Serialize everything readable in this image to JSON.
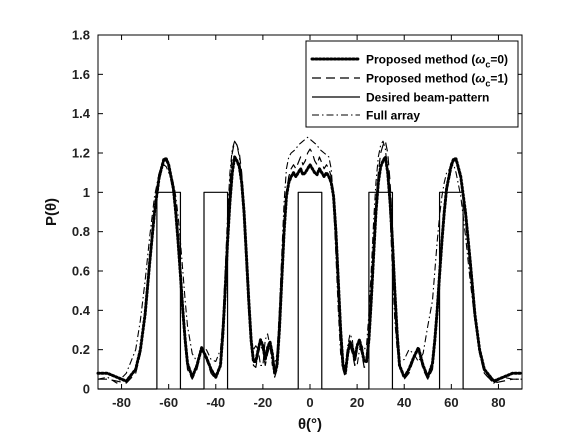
{
  "chart_data": {
    "type": "line",
    "xlabel": "θ(°)",
    "ylabel": "P(θ)",
    "xlim": [
      -90,
      90
    ],
    "ylim": [
      0,
      1.8
    ],
    "xticks": [
      -80,
      -60,
      -40,
      -20,
      0,
      20,
      40,
      60,
      80
    ],
    "yticks": [
      0,
      0.2,
      0.4,
      0.6,
      0.8,
      1,
      1.2,
      1.4,
      1.6,
      1.8
    ],
    "ytick_labels": [
      "0",
      "0.2",
      "0.4",
      "0.6",
      "0.8",
      "1",
      "1.2",
      "1.4",
      "1.6",
      "1.8"
    ],
    "grid": false,
    "legend_position": "top-right",
    "series": [
      {
        "name": "Proposed method (ωc=0)",
        "legend_main": "Proposed method (",
        "legend_symbol": "ω",
        "legend_sub": "c",
        "legend_tail": "=0)",
        "style": "dotted",
        "x": [
          -90,
          -86,
          -82,
          -78,
          -74,
          -72,
          -70,
          -68,
          -66,
          -64,
          -62,
          -61,
          -60,
          -58,
          -57,
          -56,
          -55,
          -54,
          -53,
          -52,
          -50,
          -48,
          -46,
          -44,
          -42,
          -40,
          -38,
          -37,
          -36,
          -35,
          -34,
          -33,
          -32,
          -31,
          -30,
          -29,
          -28,
          -27,
          -26,
          -25,
          -24,
          -23,
          -22,
          -21,
          -20,
          -19,
          -18,
          -17,
          -16,
          -15,
          -14,
          -13,
          -12,
          -11,
          -10,
          -9,
          -8,
          -7,
          -6,
          -5,
          -4,
          -3,
          -2,
          -1,
          0,
          1,
          2,
          3,
          4,
          5,
          6,
          7,
          8,
          9,
          10,
          11,
          12,
          13,
          14,
          15,
          16,
          17,
          18,
          19,
          20,
          21,
          22,
          23,
          24,
          25,
          26,
          27,
          28,
          29,
          30,
          31,
          32,
          33,
          34,
          35,
          36,
          37,
          38,
          40,
          42,
          44,
          46,
          48,
          50,
          52,
          53,
          54,
          55,
          56,
          57,
          58,
          60,
          61,
          62,
          64,
          66,
          68,
          70,
          72,
          74,
          78,
          82,
          86,
          90
        ],
        "y": [
          0.08,
          0.08,
          0.06,
          0.04,
          0.1,
          0.2,
          0.38,
          0.65,
          0.9,
          1.08,
          1.17,
          1.17,
          1.14,
          1.02,
          0.9,
          0.75,
          0.58,
          0.4,
          0.25,
          0.13,
          0.06,
          0.12,
          0.21,
          0.16,
          0.1,
          0.06,
          0.12,
          0.28,
          0.5,
          0.75,
          0.95,
          1.1,
          1.18,
          1.16,
          1.13,
          1.05,
          0.9,
          0.68,
          0.45,
          0.25,
          0.14,
          0.14,
          0.2,
          0.25,
          0.22,
          0.15,
          0.21,
          0.24,
          0.18,
          0.08,
          0.12,
          0.3,
          0.55,
          0.8,
          0.98,
          1.05,
          1.08,
          1.1,
          1.08,
          1.1,
          1.12,
          1.09,
          1.1,
          1.12,
          1.14,
          1.12,
          1.1,
          1.09,
          1.12,
          1.1,
          1.08,
          1.1,
          1.08,
          1.05,
          0.98,
          0.8,
          0.55,
          0.3,
          0.12,
          0.08,
          0.18,
          0.24,
          0.21,
          0.15,
          0.22,
          0.25,
          0.2,
          0.14,
          0.14,
          0.25,
          0.45,
          0.68,
          0.9,
          1.05,
          1.13,
          1.16,
          1.18,
          1.1,
          0.95,
          0.75,
          0.5,
          0.28,
          0.12,
          0.06,
          0.1,
          0.16,
          0.21,
          0.12,
          0.06,
          0.13,
          0.25,
          0.4,
          0.58,
          0.75,
          0.9,
          1.02,
          1.14,
          1.17,
          1.17,
          1.08,
          0.9,
          0.65,
          0.38,
          0.2,
          0.1,
          0.04,
          0.06,
          0.08,
          0.08
        ]
      },
      {
        "name": "Proposed method (ωc=1)",
        "legend_main": "Proposed method (",
        "legend_symbol": "ω",
        "legend_sub": "c",
        "legend_tail": "=1)",
        "style": "dashed",
        "x": [
          -90,
          -86,
          -82,
          -78,
          -74,
          -72,
          -70,
          -68,
          -66,
          -64,
          -62,
          -61,
          -60,
          -58,
          -57,
          -56,
          -55,
          -54,
          -53,
          -52,
          -50,
          -48,
          -46,
          -44,
          -42,
          -40,
          -38,
          -37,
          -36,
          -35,
          -34,
          -33,
          -32,
          -31,
          -30,
          -29,
          -28,
          -27,
          -26,
          -25,
          -24,
          -23,
          -22,
          -21,
          -20,
          -19,
          -18,
          -17,
          -16,
          -15,
          -14,
          -13,
          -12,
          -11,
          -10,
          -9,
          -8,
          -7,
          -6,
          -5,
          -4,
          -3,
          -2,
          -1,
          0,
          1,
          2,
          3,
          4,
          5,
          6,
          7,
          8,
          9,
          10,
          11,
          12,
          13,
          14,
          15,
          16,
          17,
          18,
          19,
          20,
          21,
          22,
          23,
          24,
          25,
          26,
          27,
          28,
          29,
          30,
          31,
          32,
          33,
          34,
          35,
          36,
          37,
          38,
          40,
          42,
          44,
          46,
          48,
          50,
          52,
          53,
          54,
          55,
          56,
          57,
          58,
          60,
          61,
          62,
          64,
          66,
          68,
          70,
          72,
          74,
          78,
          82,
          86,
          90
        ],
        "y": [
          0.05,
          0.05,
          0.04,
          0.03,
          0.08,
          0.18,
          0.36,
          0.62,
          0.88,
          1.06,
          1.16,
          1.16,
          1.12,
          1.0,
          0.88,
          0.72,
          0.55,
          0.38,
          0.22,
          0.1,
          0.05,
          0.1,
          0.2,
          0.15,
          0.08,
          0.05,
          0.12,
          0.3,
          0.55,
          0.82,
          1.05,
          1.2,
          1.26,
          1.24,
          1.2,
          1.1,
          0.92,
          0.7,
          0.46,
          0.25,
          0.12,
          0.11,
          0.18,
          0.22,
          0.2,
          0.12,
          0.18,
          0.22,
          0.16,
          0.06,
          0.1,
          0.28,
          0.55,
          0.82,
          1.0,
          1.08,
          1.12,
          1.14,
          1.12,
          1.15,
          1.18,
          1.14,
          1.16,
          1.2,
          1.22,
          1.2,
          1.16,
          1.14,
          1.18,
          1.15,
          1.12,
          1.14,
          1.12,
          1.08,
          1.0,
          0.82,
          0.55,
          0.28,
          0.1,
          0.06,
          0.16,
          0.22,
          0.18,
          0.12,
          0.2,
          0.22,
          0.18,
          0.11,
          0.12,
          0.25,
          0.46,
          0.7,
          0.92,
          1.1,
          1.2,
          1.24,
          1.26,
          1.2,
          1.05,
          0.82,
          0.55,
          0.3,
          0.12,
          0.05,
          0.08,
          0.15,
          0.2,
          0.1,
          0.05,
          0.1,
          0.22,
          0.38,
          0.55,
          0.72,
          0.88,
          1.0,
          1.12,
          1.16,
          1.16,
          1.06,
          0.88,
          0.62,
          0.36,
          0.18,
          0.08,
          0.03,
          0.04,
          0.05,
          0.05
        ]
      },
      {
        "name": "Desired beam-pattern",
        "style": "solid",
        "x": [
          -90,
          -65,
          -65,
          -55,
          -55,
          -45,
          -45,
          -35,
          -35,
          -5,
          -5,
          5,
          5,
          25,
          25,
          35,
          35,
          55,
          55,
          65,
          65,
          90
        ],
        "y": [
          0,
          0,
          1,
          1,
          0,
          0,
          1,
          1,
          0,
          0,
          1,
          1,
          0,
          0,
          1,
          1,
          0,
          0,
          1,
          1,
          0,
          0
        ]
      },
      {
        "name": "Full array",
        "style": "dashdot",
        "x": [
          -90,
          -86,
          -82,
          -78,
          -74,
          -72,
          -70,
          -68,
          -66,
          -64,
          -62,
          -61,
          -60,
          -58,
          -57,
          -56,
          -55,
          -54,
          -53,
          -52,
          -50,
          -48,
          -46,
          -44,
          -42,
          -40,
          -38,
          -37,
          -36,
          -35,
          -34,
          -33,
          -32,
          -31,
          -30,
          -29,
          -28,
          -27,
          -26,
          -25,
          -24,
          -23,
          -22,
          -21,
          -20,
          -19,
          -18,
          -17,
          -16,
          -15,
          -14,
          -13,
          -12,
          -11,
          -10,
          -9,
          -8,
          -7,
          -6,
          -5,
          -4,
          -3,
          -2,
          -1,
          0,
          1,
          2,
          3,
          4,
          5,
          6,
          7,
          8,
          9,
          10,
          11,
          12,
          13,
          14,
          15,
          16,
          17,
          18,
          19,
          20,
          21,
          22,
          23,
          24,
          25,
          26,
          27,
          28,
          29,
          30,
          31,
          32,
          33,
          34,
          35,
          36,
          37,
          38,
          40,
          42,
          44,
          46,
          48,
          50,
          52,
          53,
          54,
          55,
          56,
          57,
          58,
          60,
          61,
          62,
          64,
          66,
          68,
          70,
          72,
          74,
          78,
          82,
          86,
          90
        ],
        "y": [
          0.05,
          0.06,
          0.03,
          0.08,
          0.2,
          0.35,
          0.55,
          0.78,
          0.98,
          1.1,
          1.14,
          1.13,
          1.1,
          1.05,
          0.98,
          0.88,
          0.75,
          0.6,
          0.45,
          0.32,
          0.18,
          0.14,
          0.18,
          0.2,
          0.15,
          0.14,
          0.2,
          0.35,
          0.6,
          0.88,
          1.1,
          1.22,
          1.26,
          1.24,
          1.18,
          1.05,
          0.85,
          0.6,
          0.38,
          0.22,
          0.2,
          0.22,
          0.2,
          0.12,
          0.12,
          0.25,
          0.28,
          0.22,
          0.12,
          0.12,
          0.18,
          0.4,
          0.68,
          0.95,
          1.12,
          1.18,
          1.2,
          1.21,
          1.22,
          1.24,
          1.25,
          1.26,
          1.27,
          1.28,
          1.27,
          1.26,
          1.25,
          1.24,
          1.22,
          1.21,
          1.2,
          1.19,
          1.18,
          1.12,
          0.95,
          0.68,
          0.4,
          0.18,
          0.12,
          0.12,
          0.22,
          0.28,
          0.25,
          0.12,
          0.12,
          0.2,
          0.22,
          0.2,
          0.22,
          0.38,
          0.6,
          0.85,
          1.05,
          1.18,
          1.24,
          1.26,
          1.22,
          1.1,
          0.88,
          0.6,
          0.35,
          0.2,
          0.14,
          0.15,
          0.2,
          0.18,
          0.14,
          0.18,
          0.32,
          0.45,
          0.6,
          0.75,
          0.88,
          0.98,
          1.05,
          1.1,
          1.13,
          1.14,
          1.1,
          0.98,
          0.78,
          0.55,
          0.35,
          0.2,
          0.08,
          0.03,
          0.06,
          0.05,
          0.05
        ]
      }
    ]
  }
}
